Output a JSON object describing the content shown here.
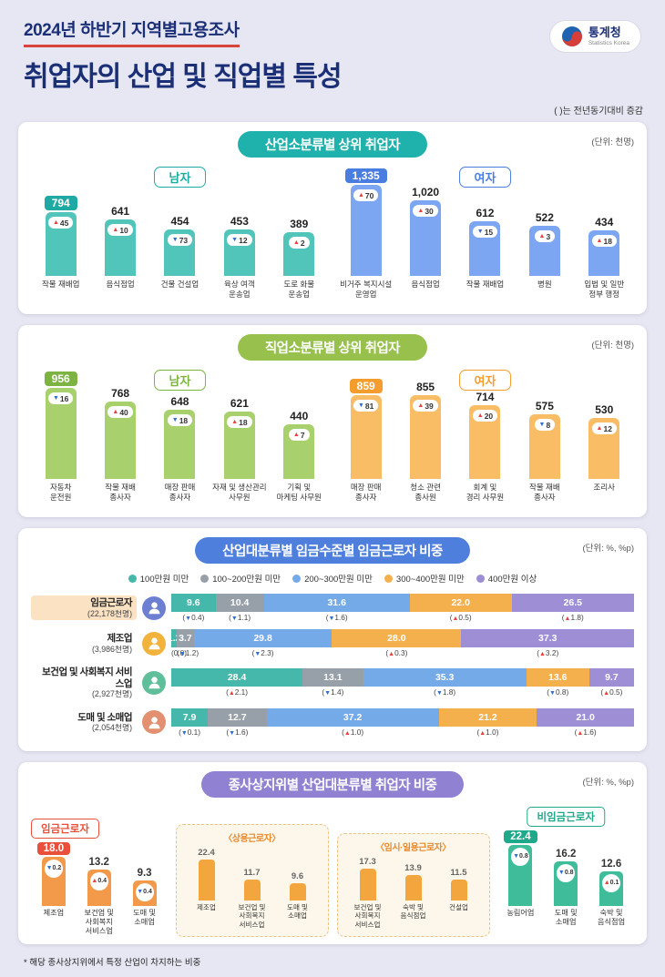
{
  "colors": {
    "up": "#e8403a",
    "down": "#2f6fd0"
  },
  "header": {
    "subtitle": "2024년 하반기 지역별고용조사",
    "title": "취업자의 산업 및 직업별 특성",
    "logo_kr": "통계청",
    "logo_en": "Statistics Korea",
    "note": "( )는 전년동기대비 증감"
  },
  "section1": {
    "title": "산업소분류별 상위 취업자",
    "unit": "(단위: 천명)",
    "badge_color": "#1fb1ab",
    "groups": [
      {
        "label": "남자",
        "accent": "#1fa9a3",
        "bar": "#52c5bb",
        "items": [
          {
            "name": "작물 재배업",
            "value": "794",
            "num": 794,
            "dir": "up",
            "change": "45",
            "highlight": true
          },
          {
            "name": "음식점업",
            "value": "641",
            "num": 641,
            "dir": "up",
            "change": "10"
          },
          {
            "name": "건물 건설업",
            "value": "454",
            "num": 454,
            "dir": "down",
            "change": "73"
          },
          {
            "name": "육상 여객\n운송업",
            "value": "453",
            "num": 453,
            "dir": "down",
            "change": "12"
          },
          {
            "name": "도로 화물\n운송업",
            "value": "389",
            "num": 389,
            "dir": "up",
            "change": "2"
          }
        ]
      },
      {
        "label": "여자",
        "accent": "#4a7de0",
        "bar": "#7da6f2",
        "items": [
          {
            "name": "비거주 복지시설\n운영업",
            "value": "1,335",
            "num": 1335,
            "dir": "up",
            "change": "70",
            "highlight": true
          },
          {
            "name": "음식점업",
            "value": "1,020",
            "num": 1020,
            "dir": "up",
            "change": "30"
          },
          {
            "name": "작물 재배업",
            "value": "612",
            "num": 612,
            "dir": "down",
            "change": "15"
          },
          {
            "name": "병원",
            "value": "522",
            "num": 522,
            "dir": "up",
            "change": "3"
          },
          {
            "name": "입법 및 일반\n정부 행정",
            "value": "434",
            "num": 434,
            "dir": "up",
            "change": "18"
          }
        ]
      }
    ]
  },
  "section2": {
    "title": "직업소분류별 상위 취업자",
    "unit": "(단위: 천명)",
    "badge_color": "#97c14c",
    "groups": [
      {
        "label": "남자",
        "accent": "#7cb342",
        "bar": "#a8d06c",
        "items": [
          {
            "name": "자동차\n운전원",
            "value": "956",
            "num": 956,
            "dir": "down",
            "change": "16",
            "highlight": true
          },
          {
            "name": "작물 재배\n종사자",
            "value": "768",
            "num": 768,
            "dir": "up",
            "change": "40"
          },
          {
            "name": "매장 판매\n종사자",
            "value": "648",
            "num": 648,
            "dir": "down",
            "change": "18"
          },
          {
            "name": "자재 및 생산관리\n사무원",
            "value": "621",
            "num": 621,
            "dir": "up",
            "change": "18"
          },
          {
            "name": "기획 및\n마케팅 사무원",
            "value": "440",
            "num": 440,
            "dir": "up",
            "change": "7"
          }
        ]
      },
      {
        "label": "여자",
        "accent": "#f59d2c",
        "bar": "#f9bd66",
        "items": [
          {
            "name": "매장 판매\n종사자",
            "value": "859",
            "num": 859,
            "dir": "down",
            "change": "81",
            "highlight": true
          },
          {
            "name": "청소 관련\n종사원",
            "value": "855",
            "num": 855,
            "dir": "up",
            "change": "39"
          },
          {
            "name": "회계 및\n경리 사무원",
            "value": "714",
            "num": 714,
            "dir": "up",
            "change": "20"
          },
          {
            "name": "작물 재배\n종사자",
            "value": "575",
            "num": 575,
            "dir": "down",
            "change": "8"
          },
          {
            "name": "조리사",
            "value": "530",
            "num": 530,
            "dir": "up",
            "change": "12"
          }
        ]
      }
    ]
  },
  "section3": {
    "title": "산업대분류별 임금수준별 임금근로자 비중",
    "unit": "(단위: %, %p)",
    "badge_color": "#4f7fdc",
    "legend": [
      {
        "label": "100만원 미만",
        "color": "#45b8ab"
      },
      {
        "label": "100~200만원 미만",
        "color": "#97a0a8"
      },
      {
        "label": "200~300만원 미만",
        "color": "#74aae8"
      },
      {
        "label": "300~400만원 미만",
        "color": "#f5b04e"
      },
      {
        "label": "400만원 이상",
        "color": "#9d8ed6"
      }
    ],
    "rows": [
      {
        "name": "임금근로자",
        "count": "(22,178천명)",
        "highlight": true,
        "avatar": "#6d7fd0",
        "segments": [
          {
            "value": "9.6",
            "num": 9.6,
            "change": "0.4",
            "dir": "down"
          },
          {
            "value": "10.4",
            "num": 10.4,
            "change": "1.1",
            "dir": "down"
          },
          {
            "value": "31.6",
            "num": 31.6,
            "change": "1.6",
            "dir": "down"
          },
          {
            "value": "22.0",
            "num": 22.0,
            "change": "0.5",
            "dir": "up"
          },
          {
            "value": "26.5",
            "num": 26.5,
            "change": "1.8",
            "dir": "up"
          }
        ]
      },
      {
        "name": "제조업",
        "count": "(3,986천명)",
        "avatar": "#f2b33d",
        "segments": [
          {
            "value": "1.2",
            "num": 1.2,
            "change": "0.0",
            "dir": "none"
          },
          {
            "value": "3.7",
            "num": 3.7,
            "change": "1.2",
            "dir": "down"
          },
          {
            "value": "29.8",
            "num": 29.8,
            "change": "2.3",
            "dir": "down"
          },
          {
            "value": "28.0",
            "num": 28.0,
            "change": "0.3",
            "dir": "up"
          },
          {
            "value": "37.3",
            "num": 37.3,
            "change": "3.2",
            "dir": "up"
          }
        ]
      },
      {
        "name": "보건업 및 사회복지 서비스업",
        "count": "(2,927천명)",
        "avatar": "#5fbf9a",
        "segments": [
          {
            "value": "28.4",
            "num": 28.4,
            "change": "2.1",
            "dir": "up"
          },
          {
            "value": "13.1",
            "num": 13.1,
            "change": "1.4",
            "dir": "down"
          },
          {
            "value": "35.3",
            "num": 35.3,
            "change": "1.8",
            "dir": "down"
          },
          {
            "value": "13.6",
            "num": 13.6,
            "change": "0.8",
            "dir": "down"
          },
          {
            "value": "9.7",
            "num": 9.7,
            "change": "0.5",
            "dir": "up"
          }
        ]
      },
      {
        "name": "도매 및 소매업",
        "count": "(2,054천명)",
        "avatar": "#e2906f",
        "segments": [
          {
            "value": "7.9",
            "num": 7.9,
            "change": "0.1",
            "dir": "down"
          },
          {
            "value": "12.7",
            "num": 12.7,
            "change": "1.6",
            "dir": "down"
          },
          {
            "value": "37.2",
            "num": 37.2,
            "change": "1.0",
            "dir": "up"
          },
          {
            "value": "21.2",
            "num": 21.2,
            "change": "1.0",
            "dir": "up"
          },
          {
            "value": "21.0",
            "num": 21.0,
            "change": "1.6",
            "dir": "up"
          }
        ]
      }
    ]
  },
  "section4": {
    "title": "종사상지위별 산업대분류별 취업자 비중",
    "unit": "(단위: %, %p)",
    "badge_color": "#9181d2",
    "wage": {
      "label": "임금근로자",
      "accent": "#e8503a",
      "bar": "#f29a4a",
      "items": [
        {
          "name": "제조업",
          "value": "18.0",
          "num": 18.0,
          "change": "0.2",
          "dir": "down",
          "highlight": true
        },
        {
          "name": "보건업 및\n사회복지\n서비스업",
          "value": "13.2",
          "num": 13.2,
          "change": "0.4",
          "dir": "up"
        },
        {
          "name": "도매 및\n소매업",
          "value": "9.3",
          "num": 9.3,
          "change": "0.4",
          "dir": "down"
        }
      ]
    },
    "regular": {
      "title": "〈상용근로자〉",
      "bar": "#f3a63e",
      "items": [
        {
          "name": "제조업",
          "value": "22.4",
          "num": 22.4
        },
        {
          "name": "보건업 및\n사회복지\n서비스업",
          "value": "11.7",
          "num": 11.7
        },
        {
          "name": "도매 및\n소매업",
          "value": "9.6",
          "num": 9.6
        }
      ]
    },
    "temporary": {
      "title": "〈임시·일용근로자〉",
      "bar": "#f3a63e",
      "items": [
        {
          "name": "보건업 및\n사회복지\n서비스업",
          "value": "17.3",
          "num": 17.3
        },
        {
          "name": "숙박 및\n음식점업",
          "value": "13.9",
          "num": 13.9
        },
        {
          "name": "건설업",
          "value": "11.5",
          "num": 11.5
        }
      ]
    },
    "nonwage": {
      "label": "비임금근로자",
      "accent": "#1fa98b",
      "bar": "#3fbd9b",
      "items": [
        {
          "name": "농림어업",
          "value": "22.4",
          "num": 22.4,
          "change": "0.8",
          "dir": "down",
          "highlight": true
        },
        {
          "name": "도매 및\n소매업",
          "value": "16.2",
          "num": 16.2,
          "change": "0.8",
          "dir": "down"
        },
        {
          "name": "숙박 및\n음식점업",
          "value": "12.6",
          "num": 12.6,
          "change": "0.1",
          "dir": "up"
        }
      ]
    },
    "footnote": "* 해당 종사상지위에서 특정 산업이 차지하는 비중"
  },
  "chart_data": [
    {
      "type": "bar",
      "title": "산업소분류별 상위 취업자 — 남자",
      "ylabel": "천명",
      "categories": [
        "작물 재배업",
        "음식점업",
        "건물 건설업",
        "육상 여객 운송업",
        "도로 화물 운송업"
      ],
      "values": [
        794,
        641,
        454,
        453,
        389
      ],
      "yoy_change": [
        45,
        10,
        -73,
        -12,
        2
      ]
    },
    {
      "type": "bar",
      "title": "산업소분류별 상위 취업자 — 여자",
      "ylabel": "천명",
      "categories": [
        "비거주 복지시설 운영업",
        "음식점업",
        "작물 재배업",
        "병원",
        "입법 및 일반 정부 행정"
      ],
      "values": [
        1335,
        1020,
        612,
        522,
        434
      ],
      "yoy_change": [
        70,
        30,
        -15,
        3,
        18
      ]
    },
    {
      "type": "bar",
      "title": "직업소분류별 상위 취업자 — 남자",
      "ylabel": "천명",
      "categories": [
        "자동차 운전원",
        "작물 재배 종사자",
        "매장 판매 종사자",
        "자재 및 생산관리 사무원",
        "기획 및 마케팅 사무원"
      ],
      "values": [
        956,
        768,
        648,
        621,
        440
      ],
      "yoy_change": [
        -16,
        40,
        -18,
        18,
        7
      ]
    },
    {
      "type": "bar",
      "title": "직업소분류별 상위 취업자 — 여자",
      "ylabel": "천명",
      "categories": [
        "매장 판매 종사자",
        "청소 관련 종사원",
        "회계 및 경리 사무원",
        "작물 재배 종사자",
        "조리사"
      ],
      "values": [
        859,
        855,
        714,
        575,
        530
      ],
      "yoy_change": [
        -81,
        39,
        20,
        -8,
        12
      ]
    },
    {
      "type": "bar",
      "stacked": true,
      "title": "산업대분류별 임금수준별 임금근로자 비중 (%)",
      "categories": [
        "임금근로자",
        "제조업",
        "보건업 및 사회복지 서비스업",
        "도매 및 소매업"
      ],
      "series": [
        {
          "name": "100만원 미만",
          "values": [
            9.6,
            1.2,
            28.4,
            7.9
          ]
        },
        {
          "name": "100~200만원 미만",
          "values": [
            10.4,
            3.7,
            13.1,
            12.7
          ]
        },
        {
          "name": "200~300만원 미만",
          "values": [
            31.6,
            29.8,
            35.3,
            37.2
          ]
        },
        {
          "name": "300~400만원 미만",
          "values": [
            22.0,
            28.0,
            13.6,
            21.2
          ]
        },
        {
          "name": "400만원 이상",
          "values": [
            26.5,
            37.3,
            9.7,
            21.0
          ]
        }
      ],
      "legend_position": "top"
    },
    {
      "type": "bar",
      "title": "종사상지위별 산업대분류별 취업자 비중 (%)",
      "series": [
        {
          "name": "임금근로자",
          "categories": [
            "제조업",
            "보건업 및 사회복지 서비스업",
            "도매 및 소매업"
          ],
          "values": [
            18.0,
            13.2,
            9.3
          ]
        },
        {
          "name": "상용근로자",
          "categories": [
            "제조업",
            "보건업 및 사회복지 서비스업",
            "도매 및 소매업"
          ],
          "values": [
            22.4,
            11.7,
            9.6
          ]
        },
        {
          "name": "임시·일용근로자",
          "categories": [
            "보건업 및 사회복지 서비스업",
            "숙박 및 음식점업",
            "건설업"
          ],
          "values": [
            17.3,
            13.9,
            11.5
          ]
        },
        {
          "name": "비임금근로자",
          "categories": [
            "농림어업",
            "도매 및 소매업",
            "숙박 및 음식점업"
          ],
          "values": [
            22.4,
            16.2,
            12.6
          ]
        }
      ]
    }
  ]
}
